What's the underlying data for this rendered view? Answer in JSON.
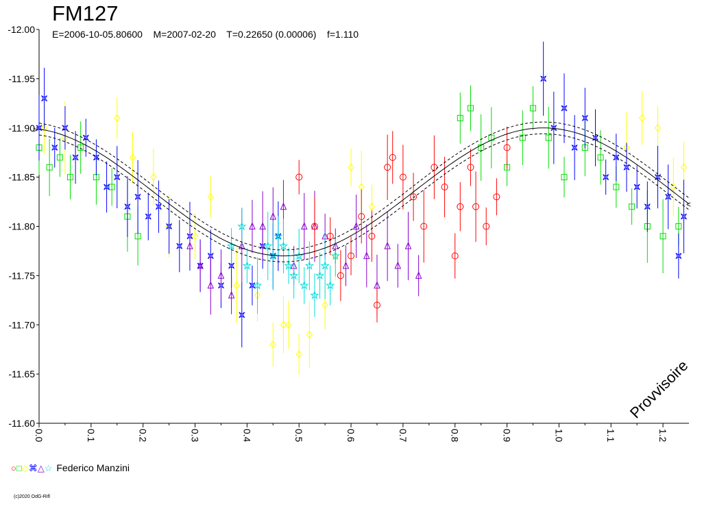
{
  "header": {
    "title": "FM127",
    "subtitle": "E=2006-10-05.80600    M=2007-02-20    T=0.22650 (0.00006)    f=1.110"
  },
  "watermark": "Provvisoire",
  "copyright": "(c)2020 OdG-Rifl",
  "legend": {
    "observer": "Federico Manzini",
    "symbols": [
      {
        "glyph": "○",
        "color": "#ff0000"
      },
      {
        "glyph": "□",
        "color": "#00dd00"
      },
      {
        "glyph": "◇",
        "color": "#ffff00"
      },
      {
        "glyph": "⌘",
        "color": "#0000ff"
      },
      {
        "glyph": "△",
        "color": "#8800cc"
      },
      {
        "glyph": "☆",
        "color": "#00dddd"
      }
    ]
  },
  "chart_data": {
    "type": "scatter",
    "xlabel": "",
    "ylabel": "",
    "xlim": [
      0.0,
      1.25
    ],
    "ylim": [
      -12.0,
      -11.6
    ],
    "y_inverted": true,
    "x_ticks": [
      "0.0",
      "0.1",
      "0.2",
      "0.3",
      "0.4",
      "0.5",
      "0.6",
      "0.7",
      "0.8",
      "0.9",
      "1.0",
      "1.1",
      "1.2"
    ],
    "y_ticks": [
      "-12.00",
      "-11.95",
      "-11.90",
      "-11.85",
      "-11.80",
      "-11.75",
      "-11.70",
      "-11.65",
      "-11.60"
    ],
    "model": {
      "description": "fitted light curve with confidence envelope",
      "mean": -11.835,
      "amplitude": 0.065,
      "min_phase": 0.47,
      "envelope": 0.006
    },
    "series": [
      {
        "color": "#00dd00",
        "marker": "square",
        "points": [
          [
            0.0,
            -11.88
          ],
          [
            0.02,
            -11.86
          ],
          [
            0.04,
            -11.87
          ],
          [
            0.06,
            -11.85
          ],
          [
            0.08,
            -11.88
          ],
          [
            0.11,
            -11.85
          ],
          [
            0.14,
            -11.84
          ],
          [
            0.17,
            -11.81
          ],
          [
            0.19,
            -11.79
          ],
          [
            0.81,
            -11.91
          ],
          [
            0.83,
            -11.92
          ],
          [
            0.85,
            -11.88
          ],
          [
            0.87,
            -11.89
          ],
          [
            0.9,
            -11.86
          ],
          [
            0.93,
            -11.89
          ],
          [
            0.95,
            -11.92
          ],
          [
            0.98,
            -11.89
          ],
          [
            1.01,
            -11.85
          ],
          [
            1.05,
            -11.88
          ],
          [
            1.08,
            -11.87
          ],
          [
            1.11,
            -11.84
          ],
          [
            1.14,
            -11.82
          ],
          [
            1.17,
            -11.8
          ],
          [
            1.2,
            -11.79
          ],
          [
            1.23,
            -11.8
          ]
        ]
      },
      {
        "color": "#ffff00",
        "marker": "diamond",
        "points": [
          [
            0.01,
            -11.9
          ],
          [
            0.05,
            -11.89
          ],
          [
            0.15,
            -11.91
          ],
          [
            0.18,
            -11.87
          ],
          [
            0.22,
            -11.85
          ],
          [
            0.25,
            -11.8
          ],
          [
            0.3,
            -11.79
          ],
          [
            0.33,
            -11.83
          ],
          [
            0.38,
            -11.74
          ],
          [
            0.42,
            -11.73
          ],
          [
            0.45,
            -11.68
          ],
          [
            0.47,
            -11.7
          ],
          [
            0.48,
            -11.7
          ],
          [
            0.5,
            -11.67
          ],
          [
            0.52,
            -11.69
          ],
          [
            0.55,
            -11.72
          ],
          [
            0.57,
            -11.77
          ],
          [
            0.6,
            -11.86
          ],
          [
            0.62,
            -11.84
          ],
          [
            0.64,
            -11.82
          ],
          [
            1.13,
            -11.88
          ],
          [
            1.16,
            -11.91
          ],
          [
            1.19,
            -11.9
          ],
          [
            1.22,
            -11.84
          ],
          [
            1.24,
            -11.86
          ]
        ]
      },
      {
        "color": "#0000ff",
        "marker": "star4",
        "points": [
          [
            0.0,
            -11.9
          ],
          [
            0.01,
            -11.93
          ],
          [
            0.03,
            -11.88
          ],
          [
            0.05,
            -11.9
          ],
          [
            0.07,
            -11.87
          ],
          [
            0.09,
            -11.89
          ],
          [
            0.11,
            -11.87
          ],
          [
            0.13,
            -11.84
          ],
          [
            0.15,
            -11.85
          ],
          [
            0.17,
            -11.82
          ],
          [
            0.19,
            -11.83
          ],
          [
            0.21,
            -11.81
          ],
          [
            0.23,
            -11.82
          ],
          [
            0.25,
            -11.8
          ],
          [
            0.27,
            -11.78
          ],
          [
            0.29,
            -11.79
          ],
          [
            0.31,
            -11.76
          ],
          [
            0.33,
            -11.77
          ],
          [
            0.35,
            -11.74
          ],
          [
            0.37,
            -11.76
          ],
          [
            0.39,
            -11.71
          ],
          [
            0.41,
            -11.74
          ],
          [
            0.43,
            -11.78
          ],
          [
            0.45,
            -11.77
          ],
          [
            0.46,
            -11.79
          ],
          [
            0.97,
            -11.95
          ],
          [
            0.99,
            -11.9
          ],
          [
            1.01,
            -11.92
          ],
          [
            1.03,
            -11.88
          ],
          [
            1.05,
            -11.91
          ],
          [
            1.07,
            -11.89
          ],
          [
            1.09,
            -11.85
          ],
          [
            1.11,
            -11.87
          ],
          [
            1.13,
            -11.86
          ],
          [
            1.15,
            -11.84
          ],
          [
            1.17,
            -11.82
          ],
          [
            1.19,
            -11.85
          ],
          [
            1.21,
            -11.83
          ],
          [
            1.23,
            -11.77
          ],
          [
            1.24,
            -11.81
          ]
        ]
      },
      {
        "color": "#8800cc",
        "marker": "triangle",
        "points": [
          [
            0.29,
            -11.78
          ],
          [
            0.31,
            -11.76
          ],
          [
            0.33,
            -11.74
          ],
          [
            0.35,
            -11.75
          ],
          [
            0.37,
            -11.73
          ],
          [
            0.39,
            -11.78
          ],
          [
            0.41,
            -11.8
          ],
          [
            0.43,
            -11.8
          ],
          [
            0.45,
            -11.81
          ],
          [
            0.47,
            -11.82
          ],
          [
            0.49,
            -11.76
          ],
          [
            0.51,
            -11.8
          ],
          [
            0.53,
            -11.8
          ],
          [
            0.55,
            -11.79
          ],
          [
            0.57,
            -11.78
          ],
          [
            0.59,
            -11.76
          ],
          [
            0.61,
            -11.8
          ],
          [
            0.63,
            -11.77
          ],
          [
            0.65,
            -11.74
          ],
          [
            0.67,
            -11.78
          ],
          [
            0.69,
            -11.76
          ],
          [
            0.71,
            -11.78
          ],
          [
            0.73,
            -11.75
          ]
        ]
      },
      {
        "color": "#00dddd",
        "marker": "star5",
        "points": [
          [
            0.37,
            -11.78
          ],
          [
            0.39,
            -11.8
          ],
          [
            0.4,
            -11.76
          ],
          [
            0.42,
            -11.74
          ],
          [
            0.44,
            -11.78
          ],
          [
            0.45,
            -11.77
          ],
          [
            0.46,
            -11.79
          ],
          [
            0.47,
            -11.78
          ],
          [
            0.48,
            -11.76
          ],
          [
            0.49,
            -11.75
          ],
          [
            0.5,
            -11.77
          ],
          [
            0.51,
            -11.74
          ],
          [
            0.52,
            -11.76
          ],
          [
            0.53,
            -11.73
          ],
          [
            0.54,
            -11.75
          ],
          [
            0.55,
            -11.76
          ],
          [
            0.56,
            -11.74
          ],
          [
            0.57,
            -11.77
          ]
        ]
      },
      {
        "color": "#ff0000",
        "marker": "circle",
        "points": [
          [
            0.5,
            -11.85
          ],
          [
            0.53,
            -11.8
          ],
          [
            0.56,
            -11.79
          ],
          [
            0.58,
            -11.75
          ],
          [
            0.6,
            -11.77
          ],
          [
            0.62,
            -11.81
          ],
          [
            0.64,
            -11.79
          ],
          [
            0.65,
            -11.72
          ],
          [
            0.67,
            -11.86
          ],
          [
            0.68,
            -11.87
          ],
          [
            0.7,
            -11.85
          ],
          [
            0.72,
            -11.83
          ],
          [
            0.74,
            -11.8
          ],
          [
            0.76,
            -11.86
          ],
          [
            0.78,
            -11.84
          ],
          [
            0.8,
            -11.77
          ],
          [
            0.81,
            -11.82
          ],
          [
            0.83,
            -11.86
          ],
          [
            0.84,
            -11.82
          ],
          [
            0.86,
            -11.8
          ],
          [
            0.88,
            -11.83
          ],
          [
            0.9,
            -11.88
          ]
        ]
      }
    ]
  }
}
